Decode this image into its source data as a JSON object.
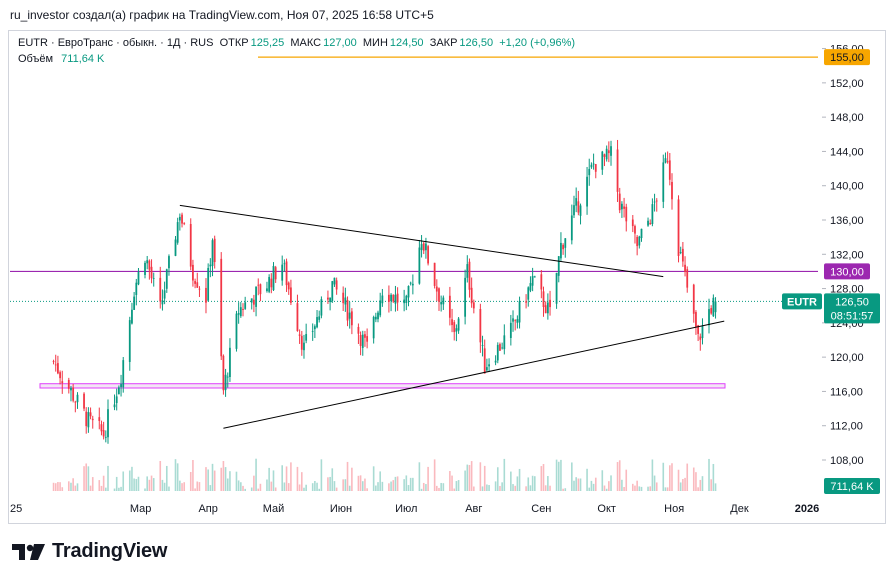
{
  "header": {
    "author_line": "ru_investor создал(а) график на TradingView.com, Ноя 07, 2025 16:58 UTC+5"
  },
  "legend": {
    "symbol": "EUTR · ЕвроТранс · обыкн. · 1Д · RUS",
    "open_label": "ОТКР",
    "open": "125,25",
    "high_label": "МАКС",
    "high": "127,00",
    "low_label": "МИН",
    "low": "124,50",
    "close_label": "ЗАКР",
    "close": "126,50",
    "change": "+1,20 (+0,96%)",
    "volume_label": "Объём",
    "volume": "711,64 K"
  },
  "brand": {
    "name": "TradingView"
  },
  "colors": {
    "up": "#089981",
    "down": "#f23645",
    "orange_line": "#f7a600",
    "purple": "#9c27b0",
    "pink_zone": "#e040fb",
    "text": "#131722"
  },
  "chart_data": {
    "type": "candlestick",
    "symbol": "EUTR",
    "interval": "1Д",
    "y_ticks": [
      "156,00",
      "152,00",
      "148,00",
      "144,00",
      "140,00",
      "136,00",
      "132,00",
      "128,00",
      "124,00",
      "120,00",
      "116,00",
      "112,00",
      "108,00"
    ],
    "y_range": [
      104.5,
      157
    ],
    "x_labels": [
      "25",
      "Мар",
      "Апр",
      "Май",
      "Июн",
      "Июл",
      "Авг",
      "Сен",
      "Окт",
      "Ноя",
      "Дек",
      "2026"
    ],
    "price_tags": {
      "orange": "155,00",
      "purple": "130,00",
      "symbol": "EUTR",
      "last": "126,50",
      "countdown": "08:51:57",
      "volume": "711,64 K"
    },
    "horizontal_lines": [
      {
        "name": "orange-level",
        "price": 155.0,
        "color": "#f7a600",
        "from": "Апр",
        "to": "end"
      },
      {
        "name": "purple-level",
        "price": 130.0,
        "color": "#9c27b0",
        "from": "start",
        "to": "end"
      }
    ],
    "support_zone": {
      "low": 116.4,
      "high": 116.9,
      "from": "Фев",
      "to": "Дек"
    },
    "trendlines": [
      {
        "name": "upper-trendline",
        "from": {
          "date": "2025-03-19",
          "price": 137.7
        },
        "to": {
          "date": "2025-10-27",
          "price": 129.4
        }
      },
      {
        "name": "lower-trendline",
        "from": {
          "date": "2025-04-08",
          "price": 111.7
        },
        "to": {
          "date": "2025-11-24",
          "price": 124.2
        }
      }
    ],
    "series_key_points": [
      {
        "date": "2025-01-20",
        "close": 119.5
      },
      {
        "date": "2025-02-05",
        "close": 112.5
      },
      {
        "date": "2025-02-12",
        "close": 111.0
      },
      {
        "date": "2025-02-20",
        "close": 118.0
      },
      {
        "date": "2025-02-26",
        "close": 128.0
      },
      {
        "date": "2025-03-03",
        "close": 132.0
      },
      {
        "date": "2025-03-10",
        "close": 125.5
      },
      {
        "date": "2025-03-19",
        "close": 137.0
      },
      {
        "date": "2025-03-25",
        "close": 130.0
      },
      {
        "date": "2025-03-31",
        "close": 127.0
      },
      {
        "date": "2025-04-03",
        "close": 134.0
      },
      {
        "date": "2025-04-08",
        "close": 116.0
      },
      {
        "date": "2025-04-15",
        "close": 125.5
      },
      {
        "date": "2025-04-28",
        "close": 128.5
      },
      {
        "date": "2025-05-05",
        "close": 131.0
      },
      {
        "date": "2025-05-15",
        "close": 121.0
      },
      {
        "date": "2025-05-28",
        "close": 128.5
      },
      {
        "date": "2025-06-05",
        "close": 125.0
      },
      {
        "date": "2025-06-13",
        "close": 121.0
      },
      {
        "date": "2025-06-20",
        "close": 128.0
      },
      {
        "date": "2025-07-01",
        "close": 126.0
      },
      {
        "date": "2025-07-08",
        "close": 134.0
      },
      {
        "date": "2025-07-15",
        "close": 128.0
      },
      {
        "date": "2025-07-23",
        "close": 122.5
      },
      {
        "date": "2025-07-29",
        "close": 130.0
      },
      {
        "date": "2025-08-06",
        "close": 119.0
      },
      {
        "date": "2025-08-18",
        "close": 123.0
      },
      {
        "date": "2025-08-28",
        "close": 129.0
      },
      {
        "date": "2025-09-05",
        "close": 125.0
      },
      {
        "date": "2025-09-10",
        "close": 133.0
      },
      {
        "date": "2025-09-18",
        "close": 138.0
      },
      {
        "date": "2025-09-25",
        "close": 142.5
      },
      {
        "date": "2025-10-03",
        "close": 143.5
      },
      {
        "date": "2025-10-07",
        "close": 138.0
      },
      {
        "date": "2025-10-15",
        "close": 133.0
      },
      {
        "date": "2025-10-22",
        "close": 137.0
      },
      {
        "date": "2025-10-29",
        "close": 143.5
      },
      {
        "date": "2025-11-03",
        "close": 133.0
      },
      {
        "date": "2025-11-07",
        "close": 128.0
      },
      {
        "date": "2025-11-12",
        "close": 122.0
      },
      {
        "date": "2025-11-17",
        "close": 125.5
      },
      {
        "date": "2025-11-20",
        "close": 126.5
      }
    ]
  }
}
